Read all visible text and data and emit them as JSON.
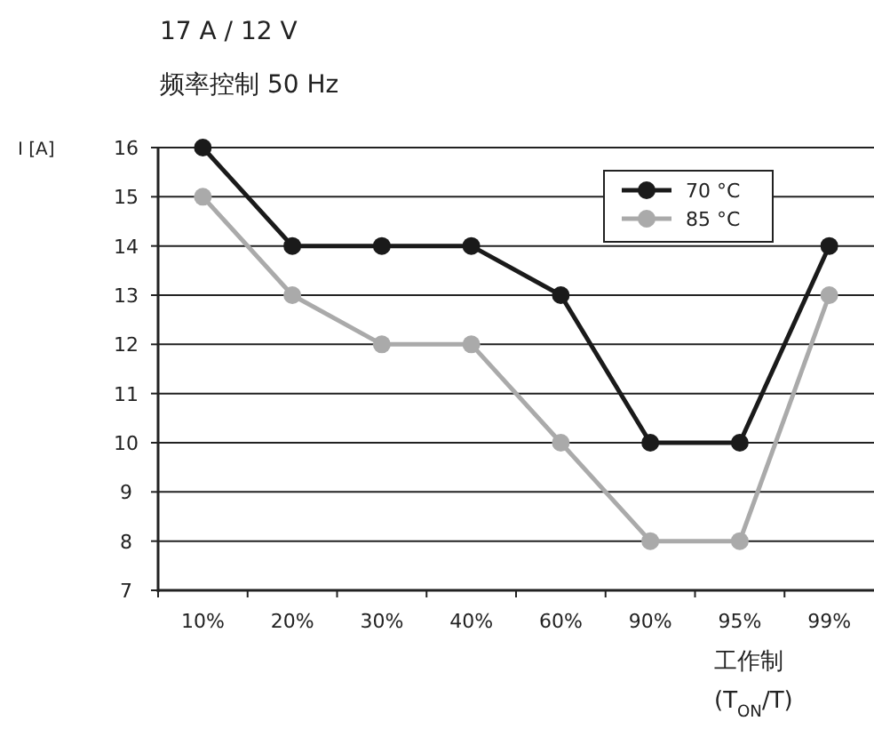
{
  "chart_data": {
    "type": "line",
    "title": "17 A / 12 V",
    "subtitle": "频率控制 50 Hz",
    "ylabel": "I [A]",
    "xlabel": "工作制 (T$_{ON}$/T)",
    "categories": [
      "10%",
      "20%",
      "30%",
      "40%",
      "60%",
      "90%",
      "95%",
      "99%"
    ],
    "series": [
      {
        "name": "70 °C",
        "color": "#1a1a1a",
        "values": [
          16,
          14,
          14,
          14,
          13,
          10,
          10,
          14
        ]
      },
      {
        "name": "85 °C",
        "color": "#aaaaaa",
        "values": [
          15,
          13,
          12,
          12,
          10,
          8,
          8,
          13
        ]
      }
    ],
    "ylim": [
      7,
      16
    ],
    "yticks": [
      7,
      8,
      9,
      10,
      11,
      12,
      13,
      14,
      15,
      16
    ],
    "grid": "y",
    "legend": "top right",
    "marker": "circle",
    "line_style": "solid"
  }
}
